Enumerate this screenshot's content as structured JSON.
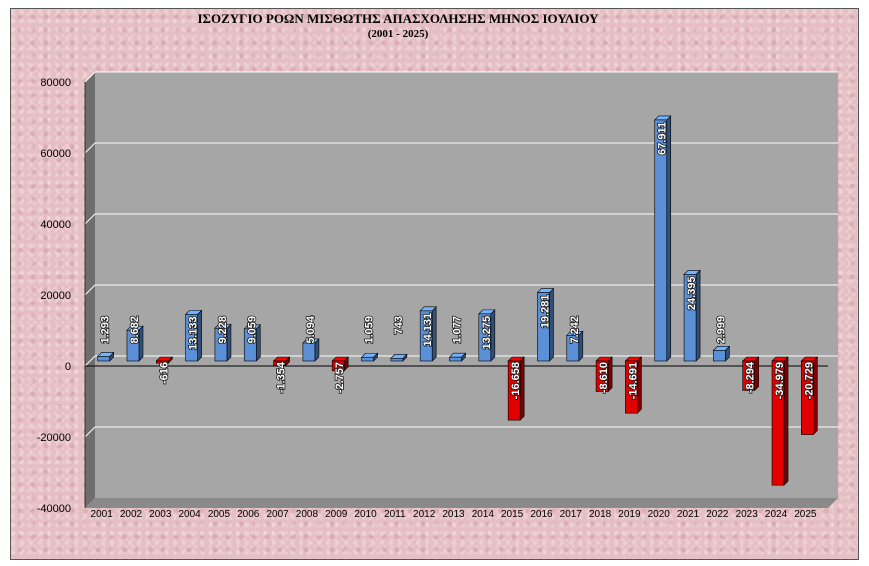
{
  "chart_data": {
    "type": "bar",
    "title": "ΙΣΟΖΥΓΙΟ ΡΟΩΝ ΜΙΣΘΩΤΗΣ ΑΠΑΣΧΟΛΗΣΗΣ ΜΗΝΟΣ  ΙΟΥΛΙΟΥ",
    "subtitle": "(2001 - 2025)",
    "xlabel": "",
    "ylabel": "",
    "ylim": [
      -40000,
      80000
    ],
    "yticks": [
      -40000,
      -20000,
      0,
      20000,
      40000,
      60000,
      80000
    ],
    "grid": true,
    "legend": "none",
    "categories": [
      "2001",
      "2002",
      "2003",
      "2004",
      "2005",
      "2006",
      "2007",
      "2008",
      "2009",
      "2010",
      "2011",
      "2012",
      "2013",
      "2014",
      "2015",
      "2016",
      "2017",
      "2018",
      "2019",
      "2020",
      "2021",
      "2022",
      "2023",
      "2024",
      "2025"
    ],
    "values": [
      1293,
      8682,
      -616,
      13133,
      9228,
      9059,
      -1354,
      5094,
      -2757,
      1059,
      743,
      14131,
      1077,
      13275,
      -16658,
      19281,
      7242,
      -8610,
      -14691,
      67911,
      24395,
      2999,
      -8294,
      -34979,
      -20729
    ],
    "labels": [
      "1.293",
      "8.682",
      "-616",
      "13.133",
      "9.228",
      "9.059",
      "-1.354",
      "5.094",
      "-2.757",
      "1.059",
      "743",
      "14.131",
      "1.077",
      "13.275",
      "-16.658",
      "19.281",
      "7.242",
      "-8.610",
      "-14.691",
      "67.911",
      "24.395",
      "2.999",
      "-8.294",
      "-34.979",
      "-20.729"
    ],
    "colors": {
      "positive": "#5b8fd6",
      "negative": "#e00000",
      "plot_bg": "#a6a6a6",
      "wall": "#6e6e6e",
      "grid": "#ffffff"
    }
  }
}
